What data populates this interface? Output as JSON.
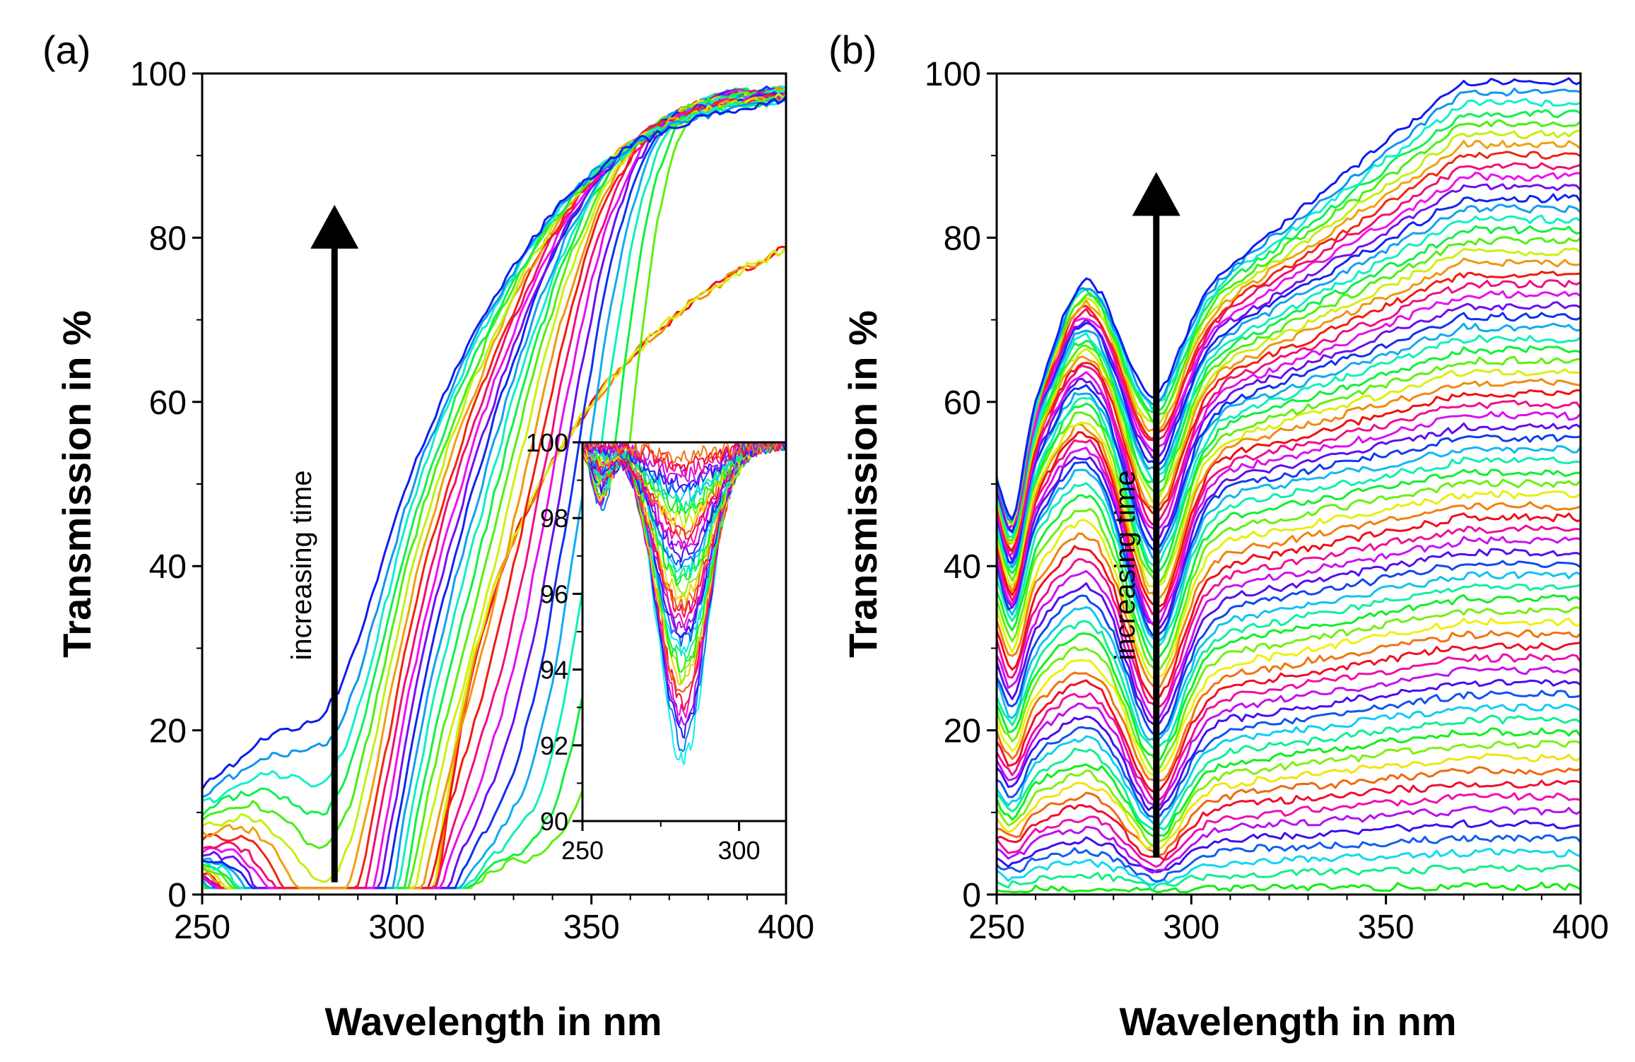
{
  "chart_data": [
    {
      "panel": "(a)",
      "type": "line",
      "xlabel": "Wavelength in nm",
      "ylabel": "Transmission in %",
      "xlim": [
        250,
        400
      ],
      "ylim": [
        0,
        100
      ],
      "xticks": [
        250,
        300,
        350,
        400
      ],
      "yticks": [
        0,
        20,
        40,
        60,
        80,
        100
      ],
      "annotation": "increasing time",
      "arrow": {
        "x": 284,
        "y_from": 1.5,
        "y_to": 84
      },
      "series_count": 30,
      "series_description": "Transmission spectra; absorption band centred near 285 nm whose minimum rises from about 0% to about 90% with increasing time, while the cutoff edge shifts from about 385 nm toward about 300 nm",
      "min_transmission_range": [
        1.5,
        90.5
      ],
      "inset": {
        "type": "line",
        "xlim": [
          250,
          315
        ],
        "ylim": [
          90,
          100
        ],
        "xticks": [
          250,
          300
        ],
        "yticks": [
          90,
          92,
          94,
          96,
          98,
          100
        ],
        "series_description": "Later-time spectra magnified; dip near 282 nm between about 91.6% and 99.6%",
        "min_transmission_range": [
          91.6,
          99.6
        ]
      }
    },
    {
      "panel": "(b)",
      "type": "line",
      "xlabel": "Wavelength in nm",
      "ylabel": "Transmission in %",
      "xlim": [
        250,
        400
      ],
      "ylim": [
        0,
        100
      ],
      "xticks": [
        250,
        300,
        350,
        400
      ],
      "yticks": [
        0,
        20,
        40,
        60,
        80,
        100
      ],
      "annotation": "increasing time",
      "arrow": {
        "x": 291,
        "y_from": 4.5,
        "y_to": 88
      },
      "series_count": 70,
      "series_description": "Transmission spectra; baseline at 400 nm rises from about 1% to about 99% with increasing time, with absorption dips near 254 nm and 291 nm",
      "baseline_400nm_range": [
        1,
        99
      ]
    }
  ]
}
